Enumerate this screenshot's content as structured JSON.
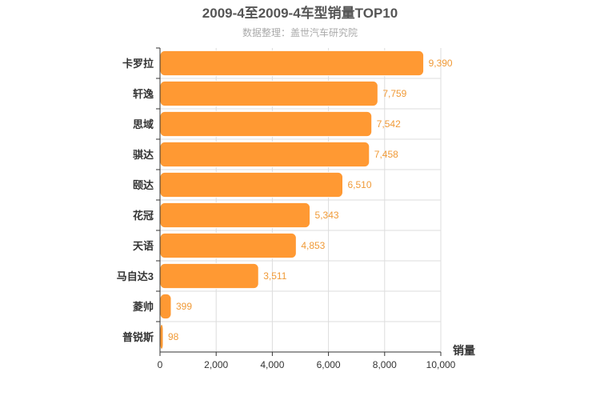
{
  "chart_data": {
    "type": "bar",
    "orientation": "horizontal",
    "title": "2009-4至2009-4车型销量TOP10",
    "subtitle": "数据整理：盖世汽车研究院",
    "xlabel": "销量",
    "ylabel": "",
    "xlim": [
      0,
      10000
    ],
    "xticks": [
      "0",
      "2,000",
      "4,000",
      "6,000",
      "8,000",
      "10,000"
    ],
    "categories": [
      "卡罗拉",
      "轩逸",
      "思域",
      "骐达",
      "颐达",
      "花冠",
      "天语",
      "马自达3",
      "菱帅",
      "普锐斯"
    ],
    "values": [
      9390,
      7759,
      7542,
      7458,
      6510,
      5343,
      4853,
      3511,
      399,
      98
    ],
    "value_labels": [
      "9,390",
      "7,759",
      "7,542",
      "7,458",
      "6,510",
      "5,343",
      "4,853",
      "3,511",
      "399",
      "98"
    ],
    "grid": true,
    "legend": "none",
    "bar_color": "#ff9933",
    "label_color": "#f09a37"
  }
}
